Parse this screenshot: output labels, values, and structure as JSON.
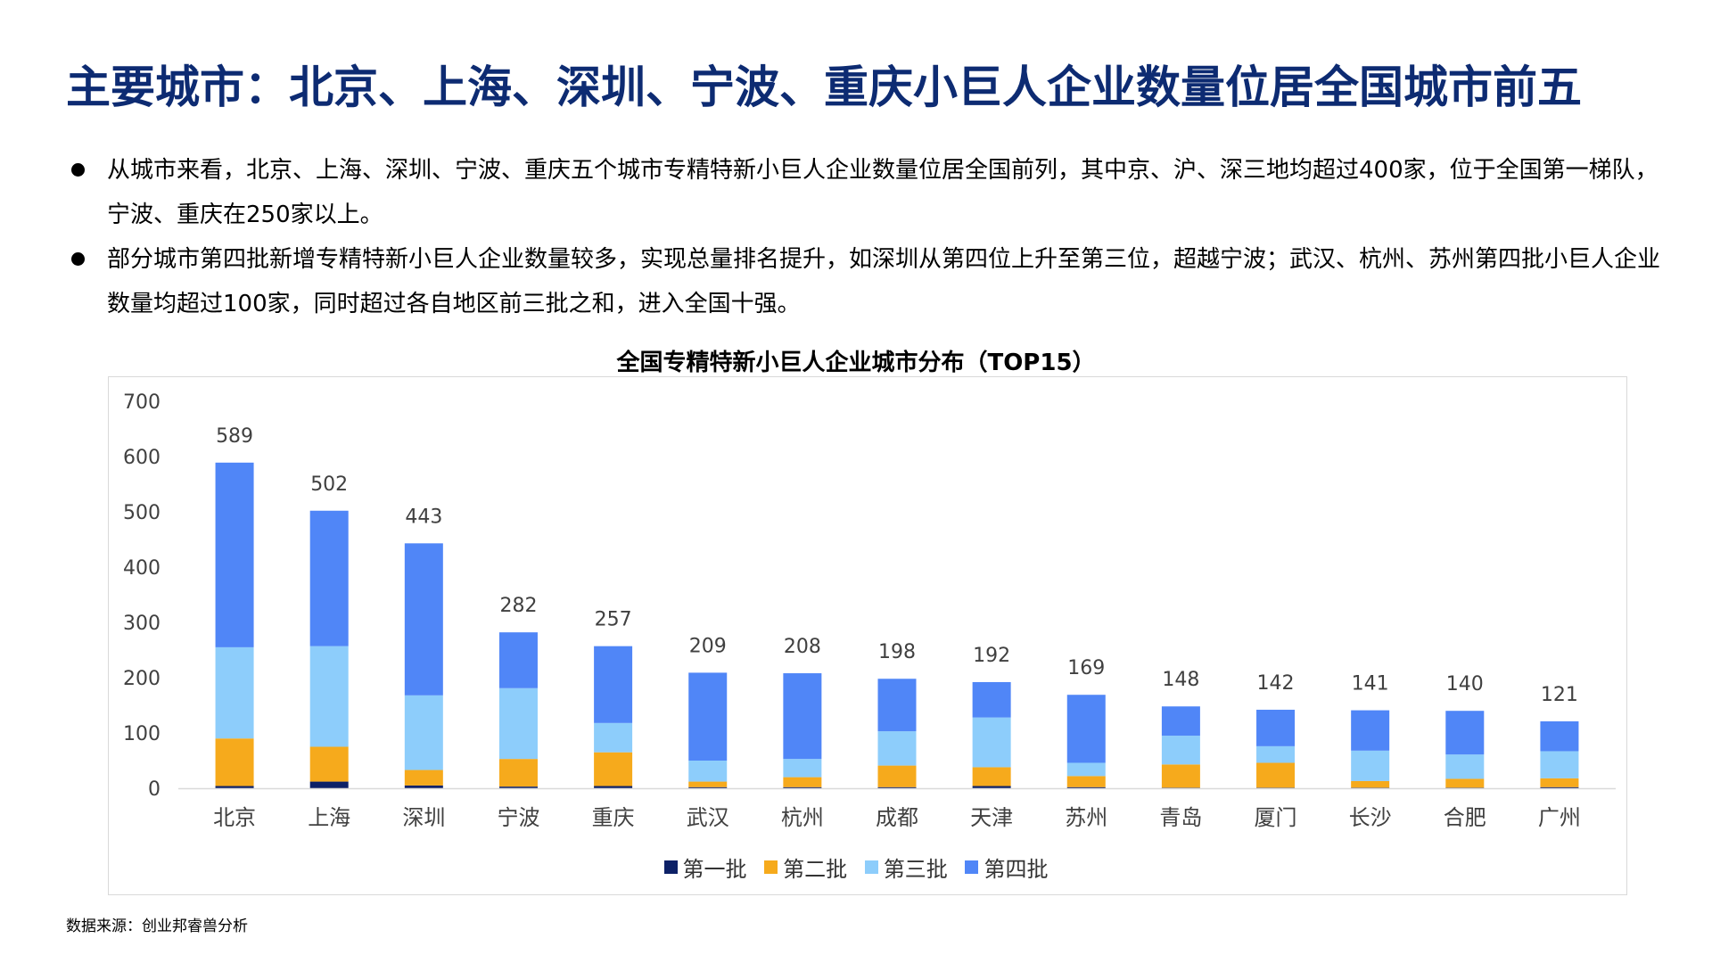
{
  "title": "主要城市：北京、上海、深圳、宁波、重庆小巨人企业数量位居全国城市前五",
  "bullets": [
    "从城市来看，北京、上海、深圳、宁波、重庆五个城市专精特新小巨人企业数量位居全国前列，其中京、沪、深三地均超过400家，位于全国第一梯队，宁波、重庆在250家以上。",
    "部分城市第四批新增专精特新小巨人企业数量较多，实现总量排名提升，如深圳从第四位上升至第三位，超越宁波；武汉、杭州、苏州第四批小巨人企业数量均超过100家，同时超过各自地区前三批之和，进入全国十强。"
  ],
  "source": "数据来源：创业邦睿兽分析",
  "chart_data": {
    "type": "bar",
    "stacked": true,
    "title": "全国专精特新小巨人企业城市分布（TOP15）",
    "categories": [
      "北京",
      "上海",
      "深圳",
      "宁波",
      "重庆",
      "武汉",
      "杭州",
      "成都",
      "天津",
      "苏州",
      "青岛",
      "厦门",
      "长沙",
      "合肥",
      "广州"
    ],
    "series": [
      {
        "name": "第一批",
        "color": "#0d2167",
        "values": [
          4,
          12,
          5,
          3,
          4,
          2,
          2,
          2,
          4,
          2,
          1,
          1,
          1,
          1,
          2
        ]
      },
      {
        "name": "第二批",
        "color": "#f6aa1c",
        "values": [
          86,
          63,
          28,
          50,
          61,
          10,
          18,
          39,
          34,
          20,
          42,
          45,
          12,
          16,
          16
        ]
      },
      {
        "name": "第三批",
        "color": "#8dcdfb",
        "values": [
          165,
          182,
          135,
          128,
          53,
          38,
          33,
          62,
          90,
          24,
          52,
          30,
          55,
          44,
          49
        ]
      },
      {
        "name": "第四批",
        "color": "#5086f7",
        "values": [
          334,
          245,
          275,
          101,
          139,
          159,
          155,
          95,
          64,
          123,
          53,
          66,
          73,
          79,
          54
        ]
      }
    ],
    "totals": [
      589,
      502,
      443,
      282,
      257,
      209,
      208,
      198,
      192,
      169,
      148,
      142,
      141,
      140,
      121
    ],
    "ylim": [
      0,
      700
    ],
    "yticks": [
      0,
      100,
      200,
      300,
      400,
      500,
      600,
      700
    ],
    "grid": false,
    "legend_position": "bottom",
    "axis_color": "#d9d9d9",
    "label_color": "#404040"
  }
}
